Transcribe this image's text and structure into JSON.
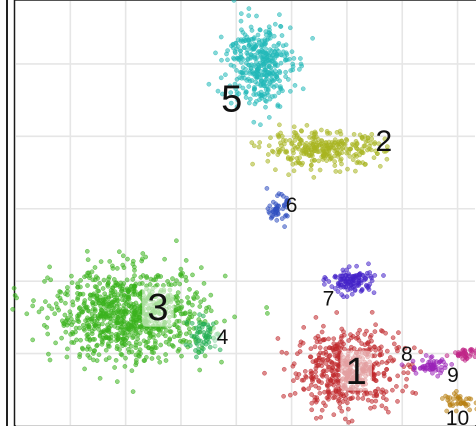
{
  "chart_data": {
    "type": "scatter",
    "title": "",
    "xlabel": "",
    "ylabel": "",
    "xlim": [
      0,
      100
    ],
    "ylim": [
      0,
      100
    ],
    "grid": true,
    "legend": "none",
    "series": [
      {
        "name": "1",
        "color": "#c0282c",
        "cx": 72,
        "cy": 13,
        "sx": 5.5,
        "sy": 4.6,
        "n": 520
      },
      {
        "name": "2",
        "color": "#a8b420",
        "cx": 67,
        "cy": 65,
        "sx": 6.5,
        "sy": 2.0,
        "n": 300
      },
      {
        "name": "3",
        "color": "#3ab21e",
        "cx": 25,
        "cy": 26,
        "sx": 8.3,
        "sy": 5.3,
        "n": 900
      },
      {
        "name": "4",
        "color": "#20ad52",
        "cx": 41,
        "cy": 21,
        "sx": 2.0,
        "sy": 2.0,
        "n": 60
      },
      {
        "name": "5",
        "color": "#21b8b8",
        "cx": 53,
        "cy": 85,
        "sx": 3.5,
        "sy": 5.0,
        "n": 380
      },
      {
        "name": "6",
        "color": "#2f4fc0",
        "cx": 57,
        "cy": 51,
        "sx": 1.0,
        "sy": 1.5,
        "n": 50
      },
      {
        "name": "7",
        "color": "#4422c8",
        "cx": 73,
        "cy": 34,
        "sx": 2.5,
        "sy": 1.5,
        "n": 120
      },
      {
        "name": "8",
        "color": "#9a22b8",
        "cx": 90,
        "cy": 14,
        "sx": 2.0,
        "sy": 1.0,
        "n": 60
      },
      {
        "name": "9",
        "color": "#c02486",
        "cx": 98,
        "cy": 17,
        "sx": 1.6,
        "sy": 0.7,
        "n": 40
      },
      {
        "name": "10",
        "color": "#b88012",
        "cx": 96,
        "cy": 6,
        "sx": 1.8,
        "sy": 0.9,
        "n": 40
      }
    ],
    "labels": [
      {
        "text": "1",
        "x": 74,
        "y": 13,
        "size": "large",
        "halo": true
      },
      {
        "text": "2",
        "x": 80,
        "y": 67,
        "size": "medium",
        "halo": false
      },
      {
        "text": "3",
        "x": 31,
        "y": 28,
        "size": "large",
        "halo": true
      },
      {
        "text": "4",
        "x": 45,
        "y": 21,
        "size": "small",
        "halo": true
      },
      {
        "text": "5",
        "x": 47,
        "y": 77,
        "size": "large",
        "halo": false
      },
      {
        "text": "6",
        "x": 60,
        "y": 52,
        "size": "small",
        "halo": false
      },
      {
        "text": "7",
        "x": 68,
        "y": 30,
        "size": "small",
        "halo": false
      },
      {
        "text": "8",
        "x": 85,
        "y": 17,
        "size": "small",
        "halo": false
      },
      {
        "text": "9",
        "x": 95,
        "y": 12,
        "size": "small",
        "halo": false
      },
      {
        "text": "10",
        "x": 96,
        "y": 2,
        "size": "small",
        "halo": false
      }
    ]
  }
}
